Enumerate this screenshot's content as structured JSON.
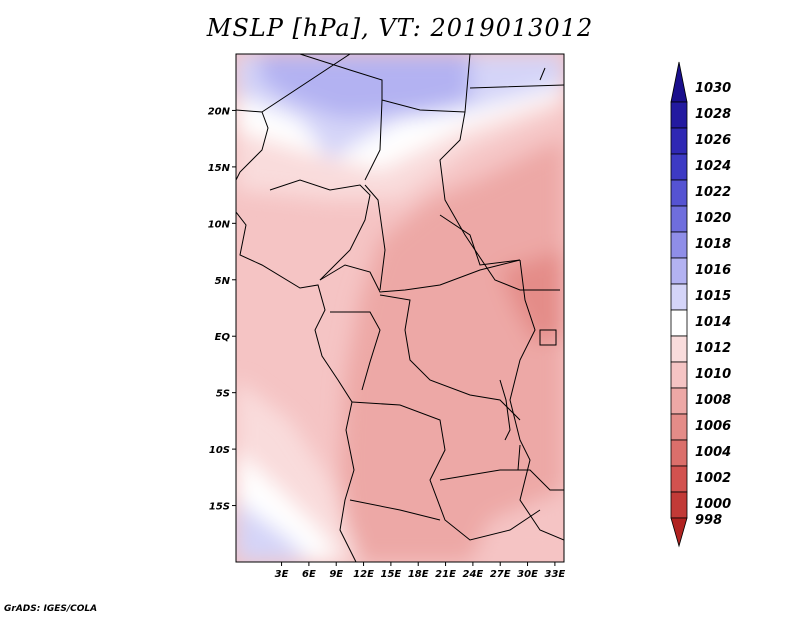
{
  "title": "MSLP [hPa], VT: 2019013012",
  "credit": "GrADS: IGES/COLA",
  "map": {
    "projection": "latlon",
    "lon_range_E": [
      -2,
      34
    ],
    "lat_range_N": [
      -20,
      25
    ],
    "lat_ticks": [
      {
        "value": 20,
        "label": "20N"
      },
      {
        "value": 15,
        "label": "15N"
      },
      {
        "value": 10,
        "label": "10N"
      },
      {
        "value": 5,
        "label": "5N"
      },
      {
        "value": 0,
        "label": "EQ"
      },
      {
        "value": -5,
        "label": "5S"
      },
      {
        "value": -10,
        "label": "10S"
      },
      {
        "value": -15,
        "label": "15S"
      }
    ],
    "lon_ticks": [
      {
        "value": 3,
        "label": "3E"
      },
      {
        "value": 6,
        "label": "6E"
      },
      {
        "value": 9,
        "label": "9E"
      },
      {
        "value": 12,
        "label": "12E"
      },
      {
        "value": 15,
        "label": "15E"
      },
      {
        "value": 18,
        "label": "18E"
      },
      {
        "value": 21,
        "label": "21E"
      },
      {
        "value": 24,
        "label": "24E"
      },
      {
        "value": 27,
        "label": "27E"
      },
      {
        "value": 30,
        "label": "30E"
      },
      {
        "value": 33,
        "label": "33E"
      }
    ]
  },
  "colorbar": {
    "unit": "hPa",
    "levels": [
      {
        "label": "1030",
        "color": "#1a0f8c"
      },
      {
        "label": "1028",
        "color": "#231aa0"
      },
      {
        "label": "1026",
        "color": "#2f28b4"
      },
      {
        "label": "1024",
        "color": "#3d3ac4"
      },
      {
        "label": "1022",
        "color": "#5553d2"
      },
      {
        "label": "1020",
        "color": "#6f6edd"
      },
      {
        "label": "1018",
        "color": "#8f8ee8"
      },
      {
        "label": "1016",
        "color": "#b3b2f2"
      },
      {
        "label": "1015",
        "color": "#d4d4f8"
      },
      {
        "label": "1014",
        "color": "#ffffff"
      },
      {
        "label": "1012",
        "color": "#f9dcdc"
      },
      {
        "label": "1010",
        "color": "#f5c4c4"
      },
      {
        "label": "1008",
        "color": "#eda8a6"
      },
      {
        "label": "1006",
        "color": "#e48c88"
      },
      {
        "label": "1004",
        "color": "#db6f6b"
      },
      {
        "label": "1002",
        "color": "#d2524f"
      },
      {
        "label": "1000",
        "color": "#c23a37"
      },
      {
        "label": "998",
        "color": "#b02220"
      }
    ]
  }
}
